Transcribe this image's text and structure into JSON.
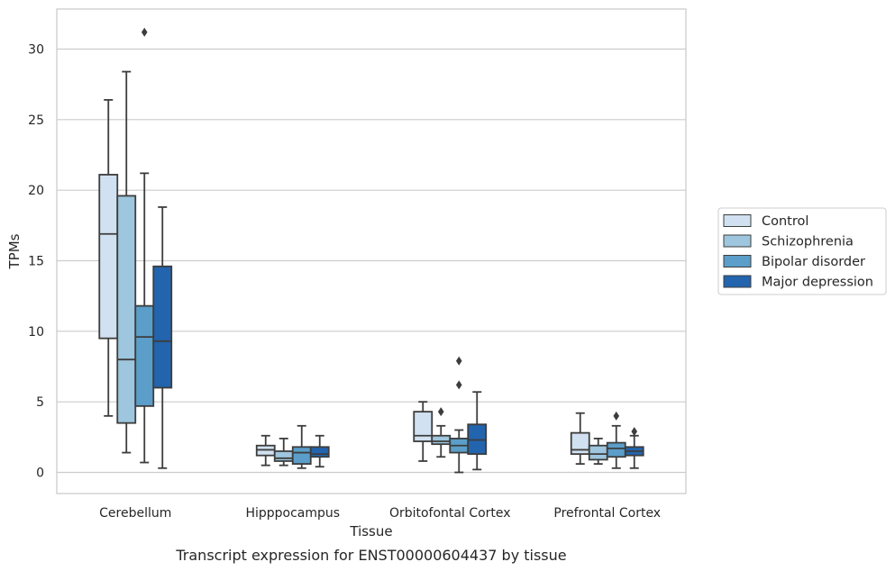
{
  "chart_data": {
    "type": "box",
    "caption": "Transcript expression for ENST00000604437 by tissue",
    "xlabel": "Tissue",
    "ylabel": "TPMs",
    "ylim": [
      -1.5,
      32.9
    ],
    "yticks": [
      0,
      5,
      10,
      15,
      20,
      25,
      30
    ],
    "grid": "horizontal",
    "legend_position": "right",
    "categories": [
      "Cerebellum",
      "Hipppocampus",
      "Orbitofontal Cortex",
      "Prefrontal Cortex"
    ],
    "series": [
      {
        "name": "Control",
        "color": "#d1e1f1",
        "boxes": [
          {
            "whisker_low": 4.0,
            "q1": 9.5,
            "median": 16.9,
            "q3": 21.1,
            "whisker_high": 26.4,
            "outliers": []
          },
          {
            "whisker_low": 0.5,
            "q1": 1.2,
            "median": 1.6,
            "q3": 1.9,
            "whisker_high": 2.6,
            "outliers": []
          },
          {
            "whisker_low": 0.8,
            "q1": 2.2,
            "median": 2.6,
            "q3": 4.3,
            "whisker_high": 5.0,
            "outliers": []
          },
          {
            "whisker_low": 0.6,
            "q1": 1.3,
            "median": 1.6,
            "q3": 2.8,
            "whisker_high": 4.2,
            "outliers": []
          }
        ]
      },
      {
        "name": "Schizophrenia",
        "color": "#9ec6de",
        "boxes": [
          {
            "whisker_low": 1.4,
            "q1": 3.5,
            "median": 8.0,
            "q3": 19.6,
            "whisker_high": 28.4,
            "outliers": []
          },
          {
            "whisker_low": 0.5,
            "q1": 0.8,
            "median": 1.0,
            "q3": 1.5,
            "whisker_high": 2.4,
            "outliers": []
          },
          {
            "whisker_low": 1.1,
            "q1": 2.0,
            "median": 2.2,
            "q3": 2.6,
            "whisker_high": 3.3,
            "outliers": [
              4.3
            ]
          },
          {
            "whisker_low": 0.6,
            "q1": 0.9,
            "median": 1.3,
            "q3": 1.9,
            "whisker_high": 2.4,
            "outliers": []
          }
        ]
      },
      {
        "name": "Bipolar disorder",
        "color": "#5a9ec9",
        "boxes": [
          {
            "whisker_low": 0.7,
            "q1": 4.7,
            "median": 9.6,
            "q3": 11.8,
            "whisker_high": 21.2,
            "outliers": [
              31.2
            ]
          },
          {
            "whisker_low": 0.3,
            "q1": 0.6,
            "median": 1.4,
            "q3": 1.8,
            "whisker_high": 3.3,
            "outliers": []
          },
          {
            "whisker_low": 0.0,
            "q1": 1.4,
            "median": 1.9,
            "q3": 2.4,
            "whisker_high": 3.0,
            "outliers": [
              6.2,
              7.9
            ]
          },
          {
            "whisker_low": 0.3,
            "q1": 1.1,
            "median": 1.7,
            "q3": 2.1,
            "whisker_high": 3.3,
            "outliers": [
              4.0
            ]
          }
        ]
      },
      {
        "name": "Major depression",
        "color": "#2264ae",
        "boxes": [
          {
            "whisker_low": 0.3,
            "q1": 6.0,
            "median": 9.3,
            "q3": 14.6,
            "whisker_high": 18.8,
            "outliers": []
          },
          {
            "whisker_low": 0.4,
            "q1": 1.1,
            "median": 1.3,
            "q3": 1.8,
            "whisker_high": 2.6,
            "outliers": []
          },
          {
            "whisker_low": 0.2,
            "q1": 1.3,
            "median": 2.3,
            "q3": 3.4,
            "whisker_high": 5.7,
            "outliers": []
          },
          {
            "whisker_low": 0.3,
            "q1": 1.2,
            "median": 1.5,
            "q3": 1.8,
            "whisker_high": 2.6,
            "outliers": [
              2.9
            ]
          }
        ]
      }
    ]
  }
}
